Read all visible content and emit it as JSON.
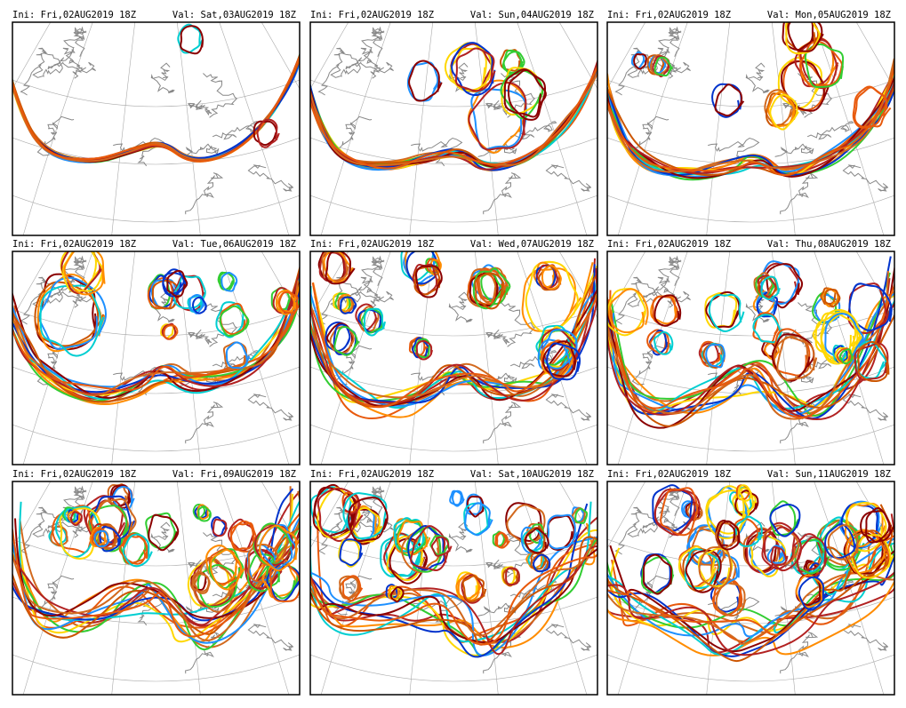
{
  "panels": [
    {
      "ini": "Ini: Fri,02AUG2019 18Z",
      "val": "Val: Sat,03AUG2019 18Z"
    },
    {
      "ini": "Ini: Fri,02AUG2019 18Z",
      "val": "Val: Sun,04AUG2019 18Z"
    },
    {
      "ini": "Ini: Fri,02AUG2019 18Z",
      "val": "Val: Mon,05AUG2019 18Z"
    },
    {
      "ini": "Ini: Fri,02AUG2019 18Z",
      "val": "Val: Tue,06AUG2019 18Z"
    },
    {
      "ini": "Ini: Fri,02AUG2019 18Z",
      "val": "Val: Wed,07AUG2019 18Z"
    },
    {
      "ini": "Ini: Fri,02AUG2019 18Z",
      "val": "Val: Thu,08AUG2019 18Z"
    },
    {
      "ini": "Ini: Fri,02AUG2019 18Z",
      "val": "Val: Fri,09AUG2019 18Z"
    },
    {
      "ini": "Ini: Fri,02AUG2019 18Z",
      "val": "Val: Sat,10AUG2019 18Z"
    },
    {
      "ini": "Ini: Fri,02AUG2019 18Z",
      "val": "Val: Sun,11AUG2019 18Z"
    }
  ]
}
